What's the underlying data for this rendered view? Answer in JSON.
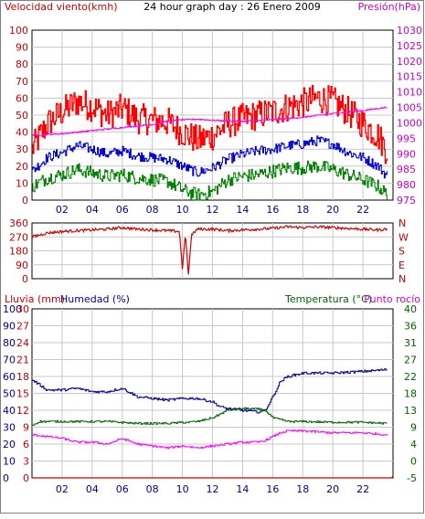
{
  "colors": {
    "wind": "#ff0000",
    "wind_avg": "#0000cc",
    "gust_low": "#008000",
    "pressure": "#ff00ff",
    "direction": "#cc0000",
    "humidity": "#000099",
    "temperature": "#006400",
    "dew_point": "#ff00ff",
    "rain": "#cc0000",
    "grid": "#c8c8c8",
    "left_axis": "#cc0000",
    "humidity_axis": "#000099",
    "temp_axis": "#006400",
    "right_axis_top": "#cc00cc",
    "time_axis": "#000099"
  },
  "chart_data": [
    {
      "type": "line",
      "title": "24 hour graph day : 26 Enero 2009",
      "left_label": "Velocidad viento(kmh)",
      "right_label": "Presión(hPa)",
      "x_ticks": [
        "02",
        "04",
        "06",
        "08",
        "10",
        "12",
        "14",
        "16",
        "18",
        "20",
        "22"
      ],
      "x_range": [
        0,
        24
      ],
      "y_left_ticks": [
        "0",
        "10",
        "20",
        "30",
        "40",
        "50",
        "60",
        "70",
        "80",
        "90",
        "100"
      ],
      "y_left_range": [
        0,
        100
      ],
      "y_right_ticks": [
        "975",
        "980",
        "985",
        "990",
        "995",
        "1000",
        "1005",
        "1010",
        "1015",
        "1020",
        "1025",
        "1030"
      ],
      "y_right_range": [
        975,
        1030
      ],
      "series": [
        {
          "key": "wind_gust",
          "x": [
            0,
            1,
            2,
            3,
            4,
            5,
            6,
            7,
            8,
            9,
            10,
            11,
            12,
            13,
            14,
            15,
            16,
            17,
            18,
            19,
            20,
            21,
            22,
            23,
            23.5
          ],
          "values": [
            30,
            45,
            52,
            58,
            55,
            50,
            54,
            48,
            47,
            46,
            40,
            35,
            38,
            45,
            48,
            50,
            52,
            55,
            57,
            60,
            58,
            52,
            45,
            38,
            30
          ]
        },
        {
          "key": "wind_avg",
          "x": [
            0,
            1,
            2,
            3,
            4,
            5,
            6,
            7,
            8,
            9,
            10,
            11,
            12,
            13,
            14,
            15,
            16,
            17,
            18,
            19,
            20,
            21,
            22,
            23,
            23.5
          ],
          "values": [
            17,
            25,
            28,
            32,
            30,
            27,
            29,
            26,
            25,
            24,
            20,
            16,
            19,
            24,
            27,
            29,
            30,
            32,
            33,
            35,
            33,
            28,
            25,
            20,
            15
          ]
        },
        {
          "key": "wind_low",
          "x": [
            0,
            1,
            2,
            3,
            4,
            5,
            6,
            7,
            8,
            9,
            10,
            11,
            12,
            13,
            14,
            15,
            16,
            17,
            18,
            19,
            20,
            21,
            22,
            23,
            23.5
          ],
          "values": [
            8,
            13,
            15,
            18,
            16,
            14,
            15,
            13,
            12,
            11,
            6,
            3,
            5,
            12,
            14,
            15,
            17,
            19,
            19,
            20,
            18,
            15,
            12,
            8,
            4
          ]
        },
        {
          "key": "pressure",
          "x": [
            0,
            2,
            4,
            6,
            8,
            9,
            10,
            11,
            12,
            14,
            16,
            18,
            20,
            22,
            23.5
          ],
          "values": [
            996,
            996.5,
            997.5,
            998.5,
            999.5,
            1000.5,
            1001,
            1001.2,
            1000.8,
            1000.5,
            1001,
            1001.8,
            1003,
            1004,
            1005
          ]
        }
      ]
    },
    {
      "type": "line",
      "title": "",
      "y_left_ticks": [
        "0",
        "90",
        "180",
        "270",
        "360"
      ],
      "y_left_range": [
        0,
        360
      ],
      "y_right_ticks": [
        "N",
        "E",
        "S",
        "W",
        "N"
      ],
      "x_range": [
        0,
        24
      ],
      "series": [
        {
          "key": "wind_direction",
          "x": [
            0,
            1,
            2,
            3,
            4,
            5,
            6,
            7,
            8,
            9,
            9.8,
            10,
            10.2,
            10.4,
            10.6,
            11,
            12,
            13,
            14,
            15,
            16,
            17,
            18,
            19,
            20,
            21,
            22,
            23,
            23.5
          ],
          "values": [
            270,
            295,
            305,
            310,
            315,
            320,
            330,
            320,
            315,
            310,
            305,
            60,
            300,
            20,
            280,
            320,
            320,
            310,
            315,
            320,
            325,
            335,
            330,
            335,
            330,
            325,
            320,
            315,
            320
          ]
        }
      ]
    },
    {
      "type": "line",
      "left_label": "Lluvia (mm)",
      "mid_label": "Humedad (%)",
      "right_label_1": "Temperatura (°C)",
      "right_label_2": "Punto rocío",
      "x_ticks": [
        "02",
        "04",
        "06",
        "08",
        "10",
        "12",
        "14",
        "16",
        "18",
        "20",
        "22"
      ],
      "x_range": [
        0,
        24
      ],
      "y_rain_ticks": [
        "0",
        "3",
        "6",
        "9",
        "12",
        "15",
        "18",
        "21",
        "24",
        "27",
        "30"
      ],
      "y_rain_range": [
        0,
        30
      ],
      "y_humidity_ticks": [
        "0",
        "10",
        "20",
        "30",
        "40",
        "50",
        "60",
        "70",
        "80",
        "90",
        "100"
      ],
      "y_humidity_range": [
        0,
        100
      ],
      "y_temp_ticks": [
        "-5",
        "0",
        "4",
        "9",
        "13",
        "18",
        "22",
        "27",
        "31",
        "36",
        "40"
      ],
      "y_temp_range": [
        -5,
        40
      ],
      "series": [
        {
          "key": "humidity",
          "x": [
            0,
            0.5,
            1,
            2,
            3,
            4,
            5,
            6,
            7,
            8,
            9,
            10,
            11,
            12,
            12.5,
            13,
            14,
            15,
            15.5,
            16,
            16.5,
            17,
            18,
            20,
            22,
            23.5
          ],
          "values": [
            58,
            55,
            52,
            52,
            53,
            51,
            51,
            53,
            48,
            47,
            46,
            47,
            47,
            45,
            42,
            41,
            40,
            39,
            40,
            48,
            57,
            60,
            62,
            62,
            63,
            64
          ]
        },
        {
          "key": "temperature",
          "x": [
            0,
            0.5,
            1,
            3,
            5,
            7,
            9,
            11,
            11.5,
            12,
            12.5,
            13,
            14,
            15,
            15.5,
            16,
            16.5,
            17,
            18,
            20,
            22,
            23.5
          ],
          "values": [
            9,
            10,
            10,
            10,
            10,
            9.5,
            9.5,
            10,
            10.5,
            11,
            12,
            13,
            13.5,
            13.3,
            13,
            11,
            10.5,
            10,
            10,
            9.8,
            9.8,
            9.5
          ]
        },
        {
          "key": "dew_point",
          "x": [
            0,
            1,
            2,
            3,
            4,
            5,
            6,
            7,
            8,
            9,
            10,
            11,
            12,
            13,
            14,
            15,
            15.5,
            16,
            16.5,
            17,
            18,
            20,
            22,
            23.5
          ],
          "values": [
            6.5,
            6,
            5.5,
            4.5,
            4.5,
            4,
            5.5,
            4,
            3.5,
            3,
            3.5,
            3,
            3.5,
            4,
            4.5,
            4.5,
            5,
            6,
            7,
            7.5,
            7.5,
            7,
            7,
            6.5
          ]
        },
        {
          "key": "rain",
          "x": [
            0,
            23.9,
            24
          ],
          "values": [
            0,
            0,
            0.3
          ]
        }
      ]
    }
  ]
}
